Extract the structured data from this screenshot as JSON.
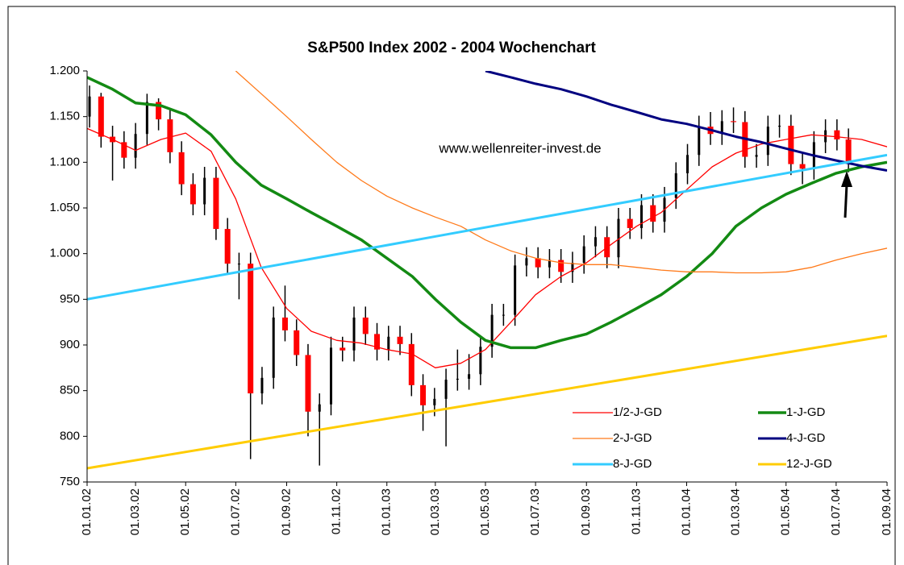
{
  "chart_data": {
    "type": "candlestick",
    "title": "S&P500 Index 2002 - 2004 Wochenchart",
    "annotation": "www.wellenreiter-invest.de",
    "xlim": [
      "2002-01-01",
      "2004-09-01"
    ],
    "xticks": [
      {
        "value": "2002-01-01",
        "label": "01.01.02"
      },
      {
        "value": "2002-03-01",
        "label": "01.03.02"
      },
      {
        "value": "2002-05-01",
        "label": "01.05.02"
      },
      {
        "value": "2002-07-01",
        "label": "01.07.02"
      },
      {
        "value": "2002-09-01",
        "label": "01.09.02"
      },
      {
        "value": "2002-11-01",
        "label": "01.11.02"
      },
      {
        "value": "2003-01-01",
        "label": "01.01.03"
      },
      {
        "value": "2003-03-01",
        "label": "01.03.03"
      },
      {
        "value": "2003-05-01",
        "label": "01.05.03"
      },
      {
        "value": "2003-07-01",
        "label": "01.07.03"
      },
      {
        "value": "2003-09-01",
        "label": "01.09.03"
      },
      {
        "value": "2003-11-01",
        "label": "01.11.03"
      },
      {
        "value": "2004-01-01",
        "label": "01.01.04"
      },
      {
        "value": "2004-03-01",
        "label": "01.03.04"
      },
      {
        "value": "2004-05-01",
        "label": "01.05.04"
      },
      {
        "value": "2004-07-01",
        "label": "01.07.04"
      },
      {
        "value": "2004-09-01",
        "label": "01.09.04"
      }
    ],
    "ylim": [
      750,
      1200
    ],
    "yticks": [
      750,
      800,
      850,
      900,
      950,
      {
        "value": 1000,
        "label": "1.000"
      },
      {
        "value": 1050,
        "label": "1.050"
      },
      {
        "value": 1100,
        "label": "1.100"
      },
      {
        "value": 1150,
        "label": "1.150"
      },
      {
        "value": 1200,
        "label": "1.200"
      }
    ],
    "ohlc": {
      "up_color": "#000000",
      "down_color": "#ff0000",
      "x": [
        "2002-01-04",
        "2002-01-18",
        "2002-02-01",
        "2002-02-15",
        "2002-03-01",
        "2002-03-15",
        "2002-03-29",
        "2002-04-12",
        "2002-04-26",
        "2002-05-10",
        "2002-05-24",
        "2002-06-07",
        "2002-06-21",
        "2002-07-05",
        "2002-07-19",
        "2002-08-02",
        "2002-08-16",
        "2002-08-30",
        "2002-09-13",
        "2002-09-27",
        "2002-10-11",
        "2002-10-25",
        "2002-11-08",
        "2002-11-22",
        "2002-12-06",
        "2002-12-20",
        "2003-01-03",
        "2003-01-17",
        "2003-01-31",
        "2003-02-14",
        "2003-02-28",
        "2003-03-14",
        "2003-03-28",
        "2003-04-11",
        "2003-04-25",
        "2003-05-09",
        "2003-05-23",
        "2003-06-06",
        "2003-06-20",
        "2003-07-04",
        "2003-07-18",
        "2003-08-01",
        "2003-08-15",
        "2003-08-29",
        "2003-09-12",
        "2003-09-26",
        "2003-10-10",
        "2003-10-24",
        "2003-11-07",
        "2003-11-21",
        "2003-12-05",
        "2003-12-19",
        "2004-01-02",
        "2004-01-16",
        "2004-01-30",
        "2004-02-13",
        "2004-02-27",
        "2004-03-12",
        "2004-03-26",
        "2004-04-09",
        "2004-04-23",
        "2004-05-07",
        "2004-05-21",
        "2004-06-04",
        "2004-06-18",
        "2004-07-02",
        "2004-07-16"
      ],
      "open": [
        1150,
        1172,
        1128,
        1122,
        1105,
        1131,
        1166,
        1147,
        1111,
        1076,
        1054,
        1083,
        1027,
        989,
        989,
        847,
        864,
        930,
        916,
        889,
        827,
        835,
        897,
        894,
        930,
        912,
        895,
        909,
        901,
        856,
        834,
        841,
        862,
        863,
        868,
        898,
        933,
        933,
        987,
        995,
        985,
        993,
        980,
        990,
        1008,
        1018,
        996,
        1038,
        1028,
        1053,
        1035,
        1061,
        1088,
        1108,
        1139,
        1131,
        1145,
        1144,
        1106,
        1108,
        1139,
        1140,
        1098,
        1093,
        1122,
        1135,
        1125
      ],
      "high": [
        1184,
        1176,
        1140,
        1134,
        1143,
        1175,
        1170,
        1159,
        1123,
        1088,
        1095,
        1095,
        1039,
        1001,
        1001,
        876,
        942,
        965,
        928,
        901,
        847,
        909,
        909,
        942,
        942,
        924,
        921,
        921,
        913,
        868,
        853,
        874,
        895,
        890,
        910,
        945,
        945,
        999,
        1007,
        1007,
        1005,
        1005,
        1002,
        1020,
        1030,
        1030,
        1050,
        1050,
        1065,
        1065,
        1073,
        1100,
        1120,
        1151,
        1155,
        1157,
        1160,
        1156,
        1120,
        1151,
        1152,
        1152,
        1110,
        1134,
        1147,
        1147,
        1137
      ],
      "low": [
        1138,
        1116,
        1080,
        1093,
        1093,
        1119,
        1135,
        1099,
        1064,
        1042,
        1042,
        1015,
        977,
        950,
        775,
        835,
        852,
        904,
        877,
        800,
        768,
        823,
        882,
        882,
        900,
        883,
        883,
        889,
        844,
        806,
        822,
        789,
        850,
        851,
        856,
        886,
        921,
        921,
        975,
        973,
        973,
        968,
        968,
        978,
        996,
        984,
        984,
        1016,
        1016,
        1023,
        1023,
        1049,
        1076,
        1096,
        1119,
        1119,
        1132,
        1094,
        1094,
        1096,
        1127,
        1086,
        1076,
        1081,
        1110,
        1113,
        1089
      ],
      "close": [
        1172,
        1128,
        1122,
        1105,
        1131,
        1166,
        1147,
        1111,
        1076,
        1054,
        1083,
        1027,
        989,
        989,
        847,
        864,
        930,
        916,
        889,
        827,
        835,
        897,
        894,
        930,
        912,
        895,
        909,
        901,
        856,
        834,
        841,
        862,
        863,
        868,
        898,
        933,
        933,
        987,
        995,
        985,
        993,
        980,
        990,
        1008,
        1018,
        996,
        1038,
        1028,
        1053,
        1035,
        1061,
        1088,
        1108,
        1139,
        1131,
        1145,
        1144,
        1106,
        1108,
        1139,
        1140,
        1098,
        1093,
        1122,
        1135,
        1125,
        1101
      ]
    },
    "series": [
      {
        "name": "1/2-J-GD",
        "color": "#ff0000",
        "line_width": 1.3,
        "x": [
          "2002-01-01",
          "2002-02-01",
          "2002-03-01",
          "2002-04-01",
          "2002-05-01",
          "2002-06-01",
          "2002-07-01",
          "2002-08-01",
          "2002-09-01",
          "2002-10-01",
          "2002-11-01",
          "2002-12-01",
          "2003-01-01",
          "2003-02-01",
          "2003-03-01",
          "2003-04-01",
          "2003-05-01",
          "2003-06-01",
          "2003-07-01",
          "2003-08-01",
          "2003-09-01",
          "2003-10-01",
          "2003-11-01",
          "2003-12-01",
          "2004-01-01",
          "2004-02-01",
          "2004-03-01",
          "2004-04-01",
          "2004-05-01",
          "2004-06-01",
          "2004-07-01",
          "2004-08-01",
          "2004-09-01"
        ],
        "values": [
          1137,
          1125,
          1113,
          1125,
          1132,
          1112,
          1060,
          985,
          940,
          915,
          905,
          902,
          895,
          890,
          875,
          880,
          895,
          925,
          955,
          975,
          990,
          1010,
          1030,
          1045,
          1070,
          1095,
          1110,
          1120,
          1125,
          1130,
          1128,
          1125,
          1117
        ]
      },
      {
        "name": "1-J-GD",
        "color": "#138a13",
        "line_width": 3.5,
        "x": [
          "2002-01-01",
          "2002-02-01",
          "2002-03-01",
          "2002-04-01",
          "2002-05-01",
          "2002-06-01",
          "2002-07-01",
          "2002-08-01",
          "2002-09-01",
          "2002-10-01",
          "2002-11-01",
          "2002-12-01",
          "2003-01-01",
          "2003-02-01",
          "2003-03-01",
          "2003-04-01",
          "2003-05-01",
          "2003-06-01",
          "2003-07-01",
          "2003-08-01",
          "2003-09-01",
          "2003-10-01",
          "2003-11-01",
          "2003-12-01",
          "2004-01-01",
          "2004-02-01",
          "2004-03-01",
          "2004-04-01",
          "2004-05-01",
          "2004-06-01",
          "2004-07-01",
          "2004-08-01",
          "2004-09-01"
        ],
        "values": [
          1193,
          1180,
          1165,
          1162,
          1152,
          1130,
          1100,
          1075,
          1060,
          1045,
          1030,
          1015,
          995,
          975,
          950,
          925,
          905,
          897,
          897,
          905,
          912,
          925,
          940,
          955,
          975,
          1000,
          1030,
          1050,
          1065,
          1077,
          1088,
          1095,
          1100
        ]
      },
      {
        "name": "2-J-GD",
        "color": "#ff7a1a",
        "line_width": 1.3,
        "x": [
          "2002-07-01",
          "2002-08-01",
          "2002-09-01",
          "2002-10-01",
          "2002-11-01",
          "2002-12-01",
          "2003-01-01",
          "2003-02-01",
          "2003-03-01",
          "2003-04-01",
          "2003-05-01",
          "2003-06-01",
          "2003-07-01",
          "2003-08-01",
          "2003-09-01",
          "2003-10-01",
          "2003-11-01",
          "2003-12-01",
          "2004-01-01",
          "2004-02-01",
          "2004-03-01",
          "2004-04-01",
          "2004-05-01",
          "2004-06-01",
          "2004-07-01",
          "2004-08-01",
          "2004-09-01"
        ],
        "values": [
          1200,
          1175,
          1150,
          1125,
          1100,
          1080,
          1063,
          1050,
          1040,
          1030,
          1015,
          1003,
          995,
          990,
          988,
          988,
          985,
          982,
          980,
          980,
          979,
          979,
          980,
          985,
          993,
          1000,
          1006
        ]
      },
      {
        "name": "4-J-GD",
        "color": "#000080",
        "line_width": 3,
        "x": [
          "2003-05-01",
          "2003-06-01",
          "2003-07-01",
          "2003-08-01",
          "2003-09-01",
          "2003-10-01",
          "2003-11-01",
          "2003-12-01",
          "2004-01-01",
          "2004-02-01",
          "2004-03-01",
          "2004-04-01",
          "2004-05-01",
          "2004-06-01",
          "2004-07-01",
          "2004-08-01",
          "2004-09-01"
        ],
        "values": [
          1200,
          1193,
          1186,
          1180,
          1172,
          1163,
          1155,
          1147,
          1142,
          1135,
          1128,
          1122,
          1115,
          1108,
          1102,
          1096,
          1091
        ]
      },
      {
        "name": "8-J-GD",
        "color": "#33ccff",
        "line_width": 3,
        "x": [
          "2002-01-01",
          "2004-09-01"
        ],
        "values": [
          950,
          1108
        ]
      },
      {
        "name": "12-J-GD",
        "color": "#ffcc00",
        "line_width": 3,
        "x": [
          "2002-01-01",
          "2004-09-01"
        ],
        "values": [
          765,
          910
        ]
      }
    ]
  }
}
